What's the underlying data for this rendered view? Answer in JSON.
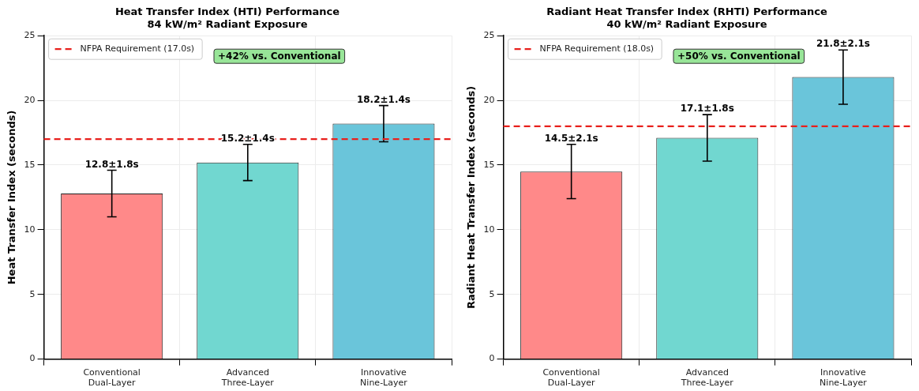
{
  "chart_data": [
    {
      "type": "bar",
      "title": "Heat Transfer Index (HTI) Performance\n84 kW/m² Radiant Exposure",
      "ylabel": "Heat Transfer Index (seconds)",
      "categories": [
        "Conventional\nDual-Layer",
        "Advanced\nThree-Layer",
        "Innovative\nNine-Layer"
      ],
      "values": [
        12.8,
        15.2,
        18.2
      ],
      "errors": [
        1.8,
        1.4,
        1.4
      ],
      "value_labels": [
        "12.8±1.8s",
        "15.2±1.4s",
        "18.2±1.4s"
      ],
      "colors": [
        "#ff8989",
        "#71d7d0",
        "#6ac5da"
      ],
      "ylim": [
        0,
        25
      ],
      "yticks": [
        0,
        5,
        10,
        15,
        20,
        25
      ],
      "grid": true,
      "legend": "top left",
      "ref_lines": [
        {
          "axis": "y",
          "value": 17.0,
          "label": "NFPA Requirement (17.0s)",
          "color": "#e8201c",
          "line_style": "dashed"
        }
      ],
      "annotations": [
        "+42% vs. Conventional"
      ]
    },
    {
      "type": "bar",
      "title": "Radiant Heat Transfer Index (RHTI) Performance\n40 kW/m² Radiant Exposure",
      "ylabel": "Radiant Heat Transfer Index (seconds)",
      "categories": [
        "Conventional\nDual-Layer",
        "Advanced\nThree-Layer",
        "Innovative\nNine-Layer"
      ],
      "values": [
        14.5,
        17.1,
        21.8
      ],
      "errors": [
        2.1,
        1.8,
        2.1
      ],
      "value_labels": [
        "14.5±2.1s",
        "17.1±1.8s",
        "21.8±2.1s"
      ],
      "colors": [
        "#ff8989",
        "#71d7d0",
        "#6ac5da"
      ],
      "ylim": [
        0,
        25
      ],
      "yticks": [
        0,
        5,
        10,
        15,
        20,
        25
      ],
      "grid": true,
      "legend": "top left",
      "ref_lines": [
        {
          "axis": "y",
          "value": 18.0,
          "label": "NFPA Requirement (18.0s)",
          "color": "#e8201c",
          "line_style": "dashed"
        }
      ],
      "annotations": [
        "+50% vs. Conventional"
      ]
    }
  ]
}
